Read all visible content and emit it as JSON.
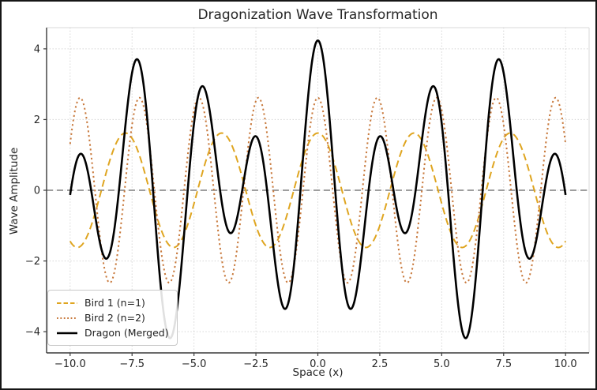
{
  "figure": {
    "background": "#ffffff",
    "frame_color": "#161616",
    "text_color": "#262626",
    "spine_color": "#3a3a3a",
    "grid_color": "#cccccc"
  },
  "chart_data": {
    "type": "line",
    "title": "Dragonization Wave Transformation",
    "xlabel": "Space (x)",
    "ylabel": "Wave Amplitude",
    "xlim": [
      -10.95,
      10.95
    ],
    "ylim": [
      -4.6,
      4.6
    ],
    "x_data_range": [
      -10,
      10
    ],
    "grid": true,
    "grid_style": "dotted",
    "x_ticks": {
      "values": [
        -10,
        -7.5,
        -5,
        -2.5,
        0,
        2.5,
        5,
        7.5,
        10
      ],
      "labels": [
        "−10.0",
        "−7.5",
        "−5.0",
        "−2.5",
        "0.0",
        "2.5",
        "5.0",
        "7.5",
        "10.0"
      ]
    },
    "y_ticks": {
      "values": [
        -4,
        -2,
        0,
        2,
        4
      ],
      "labels": [
        "−4",
        "−2",
        "0",
        "2",
        "4"
      ]
    },
    "zero_line": {
      "y": 0,
      "style": "dashed",
      "color": "#7f7f7f"
    },
    "series": [
      {
        "name": "Bird 1 (n=1)",
        "model": "y = A·cos(ω·x)",
        "amplitude": 1.618,
        "angular_frequency": 1.618,
        "phase": 0,
        "color": "#DFA520",
        "line_style": "dashed",
        "line_width": 2
      },
      {
        "name": "Bird 2 (n=2)",
        "model": "y = A·cos(ω·x)",
        "amplitude": 2.618,
        "angular_frequency": 2.618,
        "phase": 0,
        "color": "#C8793C",
        "line_style": "dotted",
        "line_width": 2
      },
      {
        "name": "Dragon (Merged)",
        "model": "Bird 1 + Bird 2",
        "components": [
          0,
          1
        ],
        "color": "#000000",
        "line_style": "solid",
        "line_width": 2.6
      }
    ],
    "samples": {
      "x": [
        -10,
        -9,
        -8,
        -7,
        -6,
        -5,
        -4,
        -3,
        -2,
        -1,
        0,
        1,
        2,
        3,
        4,
        5,
        6,
        7,
        8,
        9,
        10
      ],
      "bird1": [
        -1.44,
        -0.66,
        1.5,
        0.52,
        -1.55,
        -0.38,
        1.59,
        0.23,
        -1.61,
        -0.08,
        1.62,
        -0.08,
        -1.61,
        0.23,
        1.59,
        -0.38,
        -1.55,
        0.52,
        1.5,
        -0.66,
        -1.44
      ],
      "bird2": [
        1.31,
        0.0,
        -1.31,
        2.27,
        -2.62,
        2.27,
        -1.31,
        0.0,
        1.31,
        -2.27,
        2.62,
        -2.27,
        1.31,
        0.0,
        -1.31,
        2.27,
        -2.62,
        2.27,
        -1.31,
        0.0,
        1.31
      ],
      "dragon": [
        -0.13,
        -0.66,
        0.19,
        2.79,
        -4.17,
        1.89,
        0.28,
        0.23,
        -0.3,
        -2.34,
        4.24,
        -2.34,
        -0.3,
        0.23,
        0.28,
        1.89,
        -4.17,
        2.79,
        0.19,
        -0.66,
        -0.13
      ]
    },
    "legend": {
      "position": "lower left",
      "entries": [
        "Bird 1 (n=1)",
        "Bird 2 (n=2)",
        "Dragon (Merged)"
      ]
    }
  }
}
